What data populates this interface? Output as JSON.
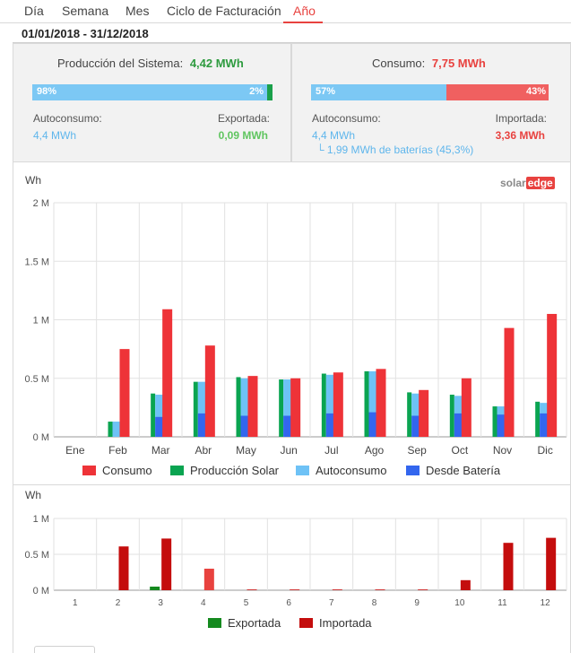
{
  "tabs": [
    {
      "label": "Día",
      "active": false
    },
    {
      "label": "Semana",
      "active": false
    },
    {
      "label": "Mes",
      "active": false
    },
    {
      "label": "Ciclo de Facturación",
      "active": false
    },
    {
      "label": "Año",
      "active": true
    }
  ],
  "date_range": "01/01/2018 - 31/12/2018",
  "production": {
    "title": "Producción del Sistema:",
    "value": "4,42 MWh",
    "bar_left_label": "98%",
    "bar_right_label": "2%",
    "self_consumption_fraction": 0.98,
    "export_fraction": 0.02,
    "self_consumption_label": "Autoconsumo:",
    "self_consumption_value": "4,4 MWh",
    "export_label": "Exportada:",
    "export_value": "0,09 MWh"
  },
  "consumption": {
    "title": "Consumo:",
    "value": "7,75 MWh",
    "bar_left_label": "57%",
    "bar_right_label": "43%",
    "self_consumption_fraction": 0.57,
    "import_fraction": 0.43,
    "self_consumption_label": "Autoconsumo:",
    "self_consumption_value": "4,4 MWh",
    "battery_note": "└ 1,99 MWh de baterías (45,3%)",
    "import_label": "Importada:",
    "import_value": "3,36 MWh"
  },
  "logo": {
    "part1": "solar",
    "part2": "edge"
  },
  "colors": {
    "accent": "#e8423f",
    "consumption": "#ee3338",
    "production": "#0aa451",
    "self_consumption": "#6ec2f6",
    "battery": "#3366ee",
    "exported": "#158a1f",
    "imported": "#c40d0d",
    "bar_blue": "#7cc8f4",
    "bar_red": "#f06060",
    "bar_green": "#1aa04a"
  },
  "chart_data": [
    {
      "type": "bar",
      "ylabel": "Wh",
      "ylim": [
        0,
        2000000
      ],
      "yticks": [
        0,
        500000,
        1000000,
        1500000,
        2000000
      ],
      "ytick_labels": [
        "0 M",
        "0.5 M",
        "1 M",
        "1.5 M",
        "2 M"
      ],
      "categories": [
        "Ene",
        "Feb",
        "Mar",
        "Abr",
        "May",
        "Jun",
        "Jul",
        "Ago",
        "Sep",
        "Oct",
        "Nov",
        "Dic"
      ],
      "grid": true,
      "legend_position": "bottom",
      "series": [
        {
          "name": "Consumo",
          "values": [
            0,
            750000,
            1090000,
            780000,
            520000,
            500000,
            550000,
            580000,
            400000,
            500000,
            930000,
            1050000
          ]
        },
        {
          "name": "Producción Solar",
          "values": [
            0,
            130000,
            370000,
            470000,
            510000,
            490000,
            540000,
            560000,
            380000,
            360000,
            260000,
            300000
          ]
        },
        {
          "name": "Autoconsumo",
          "values": [
            0,
            130000,
            360000,
            470000,
            500000,
            490000,
            530000,
            560000,
            370000,
            350000,
            260000,
            290000
          ]
        },
        {
          "name": "Desde Batería",
          "values": [
            0,
            0,
            170000,
            200000,
            180000,
            180000,
            200000,
            210000,
            180000,
            200000,
            190000,
            200000
          ]
        }
      ]
    },
    {
      "type": "bar",
      "ylabel": "Wh",
      "ylim": [
        0,
        1000000
      ],
      "yticks": [
        0,
        500000,
        1000000
      ],
      "ytick_labels": [
        "0 M",
        "0.5 M",
        "1 M"
      ],
      "categories": [
        "1",
        "2",
        "3",
        "4",
        "5",
        "6",
        "7",
        "8",
        "9",
        "10",
        "11",
        "12"
      ],
      "grid": true,
      "legend_position": "bottom",
      "series": [
        {
          "name": "Exportada",
          "values": [
            0,
            0,
            50000,
            0,
            0,
            0,
            0,
            0,
            0,
            0,
            0,
            0
          ]
        },
        {
          "name": "Importada",
          "values": [
            0,
            610000,
            720000,
            300000,
            10000,
            10000,
            10000,
            10000,
            10000,
            140000,
            660000,
            730000
          ]
        }
      ]
    }
  ]
}
